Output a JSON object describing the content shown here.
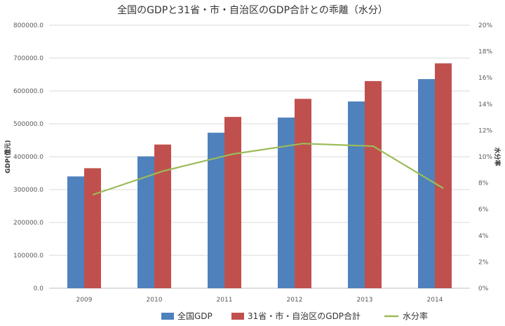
{
  "chart_data": {
    "type": "bar",
    "title": "全国のGDPと31省・市・自治区のGDP合計との乖離（水分）",
    "categories": [
      "2009",
      "2010",
      "2011",
      "2012",
      "2013",
      "2014"
    ],
    "series": [
      {
        "name": "全国GDP",
        "type": "bar",
        "axis": "left",
        "color": "#4F81BD",
        "values": [
          340000,
          401000,
          473000,
          519000,
          568000,
          636000
        ]
      },
      {
        "name": "31省・市・自治区のGDP合計",
        "type": "bar",
        "axis": "left",
        "color": "#C0504D",
        "values": [
          365000,
          437000,
          521000,
          576000,
          630000,
          684000
        ]
      },
      {
        "name": "水分率",
        "type": "line",
        "axis": "right",
        "color": "#9BBB59",
        "values": [
          7.1,
          8.9,
          10.2,
          11.0,
          10.8,
          7.6
        ]
      }
    ],
    "y_left": {
      "label": "GDP(億元)",
      "min": 0,
      "max": 800000,
      "ticks": [
        "0.0",
        "100000.0",
        "200000.0",
        "300000.0",
        "400000.0",
        "500000.0",
        "600000.0",
        "700000.0",
        "800000.0"
      ]
    },
    "y_right": {
      "label": "水分率",
      "min": 0,
      "max": 20,
      "ticks": [
        "0%",
        "2%",
        "4%",
        "6%",
        "8%",
        "10%",
        "12%",
        "14%",
        "16%",
        "18%",
        "20%"
      ]
    },
    "grid": true,
    "legend_position": "bottom"
  }
}
